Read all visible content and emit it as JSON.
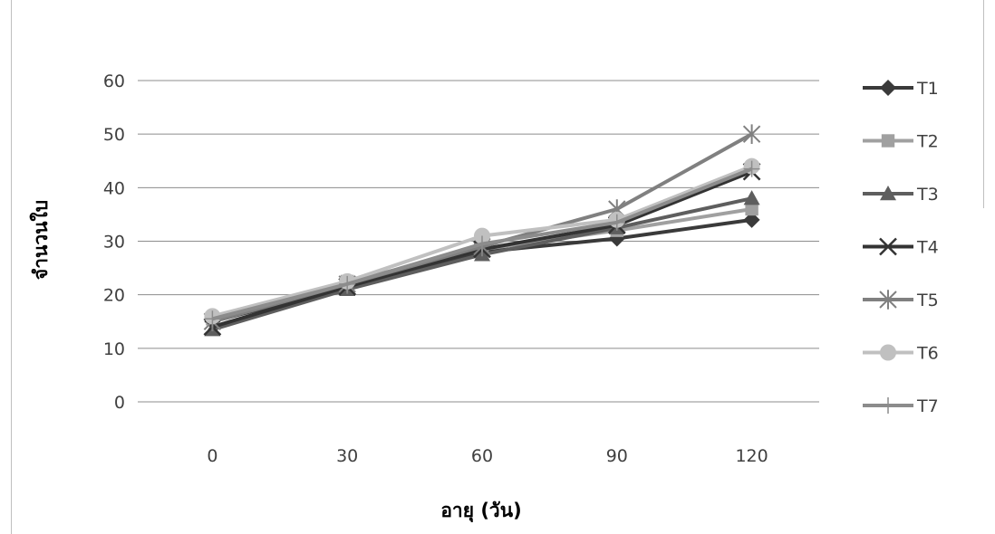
{
  "chart_data": {
    "type": "line",
    "title": "",
    "xlabel": "อายุ (วัน)",
    "ylabel": "จำนวนใบ",
    "categories": [
      "0",
      "30",
      "60",
      "90",
      "120"
    ],
    "ylim": [
      0,
      60
    ],
    "yticks": [
      "0",
      "10",
      "20",
      "30",
      "40",
      "50",
      "60"
    ],
    "grid": true,
    "legend": "right",
    "series": [
      {
        "name": "T1",
        "values": [
          15,
          21.5,
          28,
          30.5,
          34
        ],
        "color": "#3a3a3a",
        "marker": "diamond"
      },
      {
        "name": "T2",
        "values": [
          15.5,
          22.5,
          28.5,
          32,
          36
        ],
        "color": "#a0a0a0",
        "marker": "square"
      },
      {
        "name": "T3",
        "values": [
          13.5,
          21,
          27.5,
          32.5,
          38
        ],
        "color": "#5e5e5e",
        "marker": "triangle"
      },
      {
        "name": "T4",
        "values": [
          14,
          21.5,
          28.5,
          33,
          43
        ],
        "color": "#333333",
        "marker": "x"
      },
      {
        "name": "T5",
        "values": [
          15,
          22,
          29,
          36,
          50
        ],
        "color": "#808080",
        "marker": "star"
      },
      {
        "name": "T6",
        "values": [
          16,
          22.5,
          31,
          34,
          44
        ],
        "color": "#c0c0c0",
        "marker": "circle"
      },
      {
        "name": "T7",
        "values": [
          15.5,
          22,
          29.5,
          33.5,
          43.5
        ],
        "color": "#8c8c8c",
        "marker": "plus"
      }
    ]
  }
}
